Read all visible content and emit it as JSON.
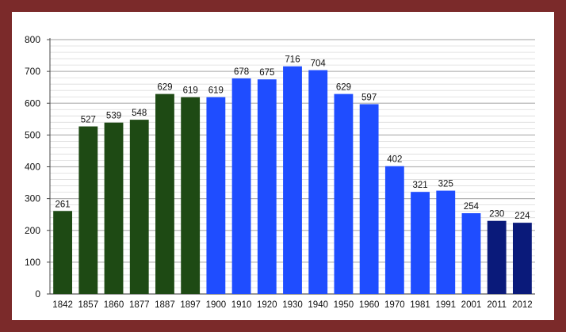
{
  "chart_data": {
    "type": "bar",
    "title": "",
    "xlabel": "",
    "ylabel": "",
    "ylim": [
      0,
      800
    ],
    "yticks": [
      0,
      100,
      200,
      300,
      400,
      500,
      600,
      700,
      800
    ],
    "grid": true,
    "categories": [
      "1842",
      "1857",
      "1860",
      "1877",
      "1887",
      "1897",
      "1900",
      "1910",
      "1920",
      "1930",
      "1940",
      "1950",
      "1960",
      "1970",
      "1981",
      "1991",
      "2001",
      "2011",
      "2012"
    ],
    "values": [
      261,
      527,
      539,
      548,
      629,
      619,
      619,
      678,
      675,
      716,
      704,
      629,
      597,
      402,
      321,
      325,
      254,
      230,
      224
    ],
    "bar_colors": [
      "#1e4a14",
      "#1e4a14",
      "#1e4a14",
      "#1e4a14",
      "#1e4a14",
      "#1e4a14",
      "#1f4dff",
      "#1f4dff",
      "#1f4dff",
      "#1f4dff",
      "#1f4dff",
      "#1f4dff",
      "#1f4dff",
      "#1f4dff",
      "#1f4dff",
      "#1f4dff",
      "#1f4dff",
      "#0a1a7a",
      "#0a1a7a"
    ],
    "frame_color": "#7b2a2a"
  }
}
